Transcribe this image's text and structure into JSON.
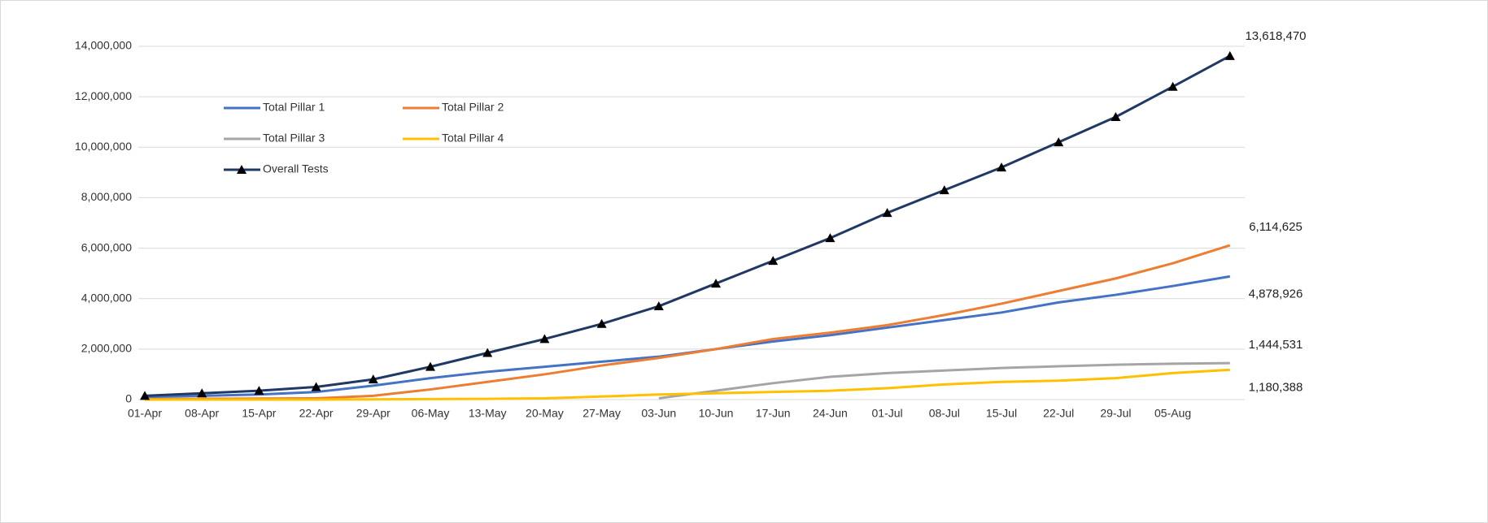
{
  "chart_data": {
    "type": "line",
    "categories": [
      "01-Apr",
      "08-Apr",
      "15-Apr",
      "22-Apr",
      "29-Apr",
      "06-May",
      "13-May",
      "20-May",
      "27-May",
      "03-Jun",
      "10-Jun",
      "17-Jun",
      "24-Jun",
      "01-Jul",
      "08-Jul",
      "15-Jul",
      "22-Jul",
      "29-Jul",
      "05-Aug",
      null
    ],
    "series": [
      {
        "name": "Total Pillar 1",
        "color": "#4472c4",
        "values": [
          100000,
          150000,
          200000,
          300000,
          550000,
          850000,
          1100000,
          1300000,
          1500000,
          1700000,
          2000000,
          2300000,
          2550000,
          2850000,
          3150000,
          3450000,
          3850000,
          4150000,
          4500000,
          4878926
        ],
        "value_labels": [
          null,
          null,
          null,
          null,
          null,
          null,
          null,
          null,
          null,
          null,
          null,
          null,
          null,
          null,
          null,
          null,
          null,
          null,
          null,
          "4,878,926"
        ]
      },
      {
        "name": "Total Pillar 2",
        "color": "#ed7d31",
        "values": [
          20000,
          30000,
          40000,
          50000,
          150000,
          400000,
          700000,
          1000000,
          1350000,
          1650000,
          2000000,
          2400000,
          2650000,
          2950000,
          3350000,
          3800000,
          4300000,
          4800000,
          5400000,
          6114625
        ],
        "value_labels": [
          null,
          null,
          null,
          null,
          null,
          null,
          null,
          null,
          null,
          null,
          null,
          null,
          null,
          null,
          null,
          null,
          null,
          null,
          null,
          "6,114,625"
        ]
      },
      {
        "name": "Total Pillar 3",
        "color": "#a5a5a5",
        "values": [
          null,
          null,
          null,
          null,
          null,
          null,
          null,
          null,
          null,
          50000,
          350000,
          650000,
          900000,
          1050000,
          1150000,
          1250000,
          1320000,
          1380000,
          1420000,
          1444531
        ],
        "value_labels": [
          null,
          null,
          null,
          null,
          null,
          null,
          null,
          null,
          null,
          null,
          null,
          null,
          null,
          null,
          null,
          null,
          null,
          null,
          null,
          "1,444,531"
        ]
      },
      {
        "name": "Total Pillar 4",
        "color": "#ffc000",
        "values": [
          0,
          0,
          0,
          0,
          10000,
          20000,
          30000,
          50000,
          120000,
          200000,
          250000,
          300000,
          350000,
          450000,
          600000,
          700000,
          750000,
          850000,
          1050000,
          1180388
        ],
        "value_labels": [
          null,
          null,
          null,
          null,
          null,
          null,
          null,
          null,
          null,
          null,
          null,
          null,
          null,
          null,
          null,
          null,
          null,
          null,
          null,
          "1,180,388"
        ]
      },
      {
        "name": "Overall Tests",
        "color": "#1f3864",
        "marker": "triangle",
        "values": [
          150000,
          250000,
          350000,
          500000,
          800000,
          1300000,
          1850000,
          2400000,
          3000000,
          3700000,
          4600000,
          5500000,
          6400000,
          7400000,
          8300000,
          9200000,
          10200000,
          11200000,
          12400000,
          13618470
        ],
        "value_labels": [
          null,
          null,
          null,
          null,
          null,
          null,
          null,
          null,
          null,
          null,
          null,
          null,
          null,
          null,
          null,
          null,
          null,
          null,
          null,
          "13,618,470"
        ]
      }
    ],
    "ylim": [
      0,
      14000000
    ],
    "yticks": [
      0,
      {
        "value": 2000000,
        "label": "2,000,000"
      },
      {
        "value": 4000000,
        "label": "4,000,000"
      },
      {
        "value": 6000000,
        "label": "6,000,000"
      },
      {
        "value": 8000000,
        "label": "8,000,000"
      },
      {
        "value": 10000000,
        "label": "10,000,000"
      },
      {
        "value": 12000000,
        "label": "12,000,000"
      },
      {
        "value": 14000000,
        "label": "14,000,000"
      }
    ],
    "grid": true,
    "legend": "upper-left"
  }
}
